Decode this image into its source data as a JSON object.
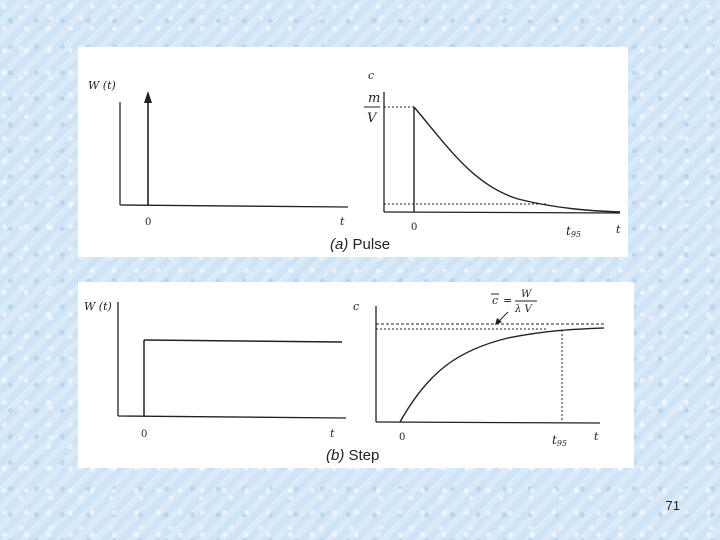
{
  "slide_number": "71",
  "pulse": {
    "caption_tag": "(a)",
    "caption_word": " Pulse",
    "left_ylabel": "W (t)",
    "left_origin": "0",
    "left_xlabel": "t",
    "right_ylabel": "c",
    "right_level_num": "m",
    "right_level_den": "V",
    "right_origin": "0",
    "right_t95_base": "t",
    "right_t95_sub": "95",
    "right_xlabel": "t"
  },
  "step": {
    "caption_tag": "(b)",
    "caption_word": " Step",
    "left_ylabel": "W (t)",
    "left_origin": "0",
    "left_xlabel": "t",
    "right_ylabel": "c",
    "right_level_bar": "c",
    "right_level_eq": "=",
    "right_level_num": "W",
    "right_level_den": "λ V",
    "right_origin": "0",
    "right_t95_base": "t",
    "right_t95_sub": "95",
    "right_xlabel": "t"
  }
}
